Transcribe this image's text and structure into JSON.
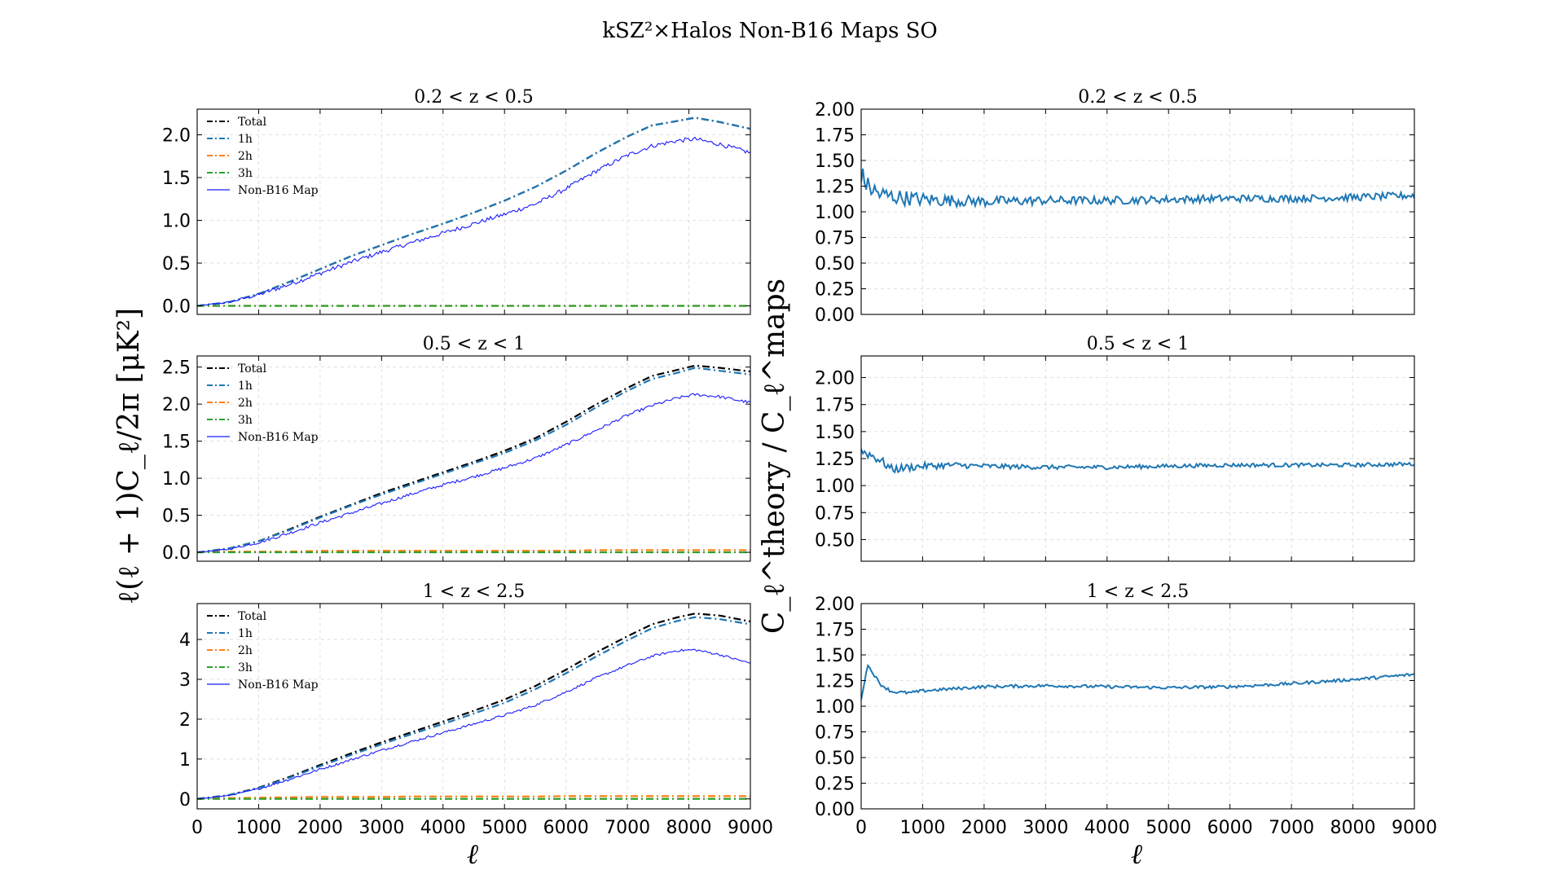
{
  "figure": {
    "title": "kSZ²×Halos Non-B16 Maps SO",
    "left_ylabel": "ℓ(ℓ + 1)C_ℓ/2π   [μK²]",
    "right_ylabel": "C_ℓ^theory / C_ℓ^maps",
    "xlabel": "ℓ"
  },
  "colors": {
    "Total": "#000000",
    "1h": "#1f77b4",
    "2h": "#ff7f0e",
    "3h": "#2ca02c",
    "Non-B16 Map": "#1a1aff",
    "ratio": "#1f77b4"
  },
  "chart_data": [
    {
      "type": "line",
      "panel": "left-1",
      "title": "0.2 < z < 0.5",
      "xlim": [
        0,
        9000
      ],
      "ylim": [
        -0.1,
        2.3
      ],
      "yticks": [
        0.0,
        0.5,
        1.0,
        1.5,
        2.0
      ],
      "ytick_labels": [
        "0.0",
        "0.5",
        "1.0",
        "1.5",
        "2.0"
      ],
      "xticks": [
        0,
        1000,
        2000,
        3000,
        4000,
        5000,
        6000,
        7000,
        8000,
        9000
      ],
      "show_xtick_labels": false,
      "grid": true,
      "legend": "top-left",
      "legend_entries": [
        "Total",
        "1h",
        "2h",
        "3h",
        "Non-B16 Map"
      ],
      "x": [
        0,
        500,
        1000,
        1500,
        2000,
        2500,
        3000,
        3500,
        4000,
        4500,
        5000,
        5500,
        6000,
        6500,
        7000,
        7400,
        7800,
        8100,
        8500,
        9000
      ],
      "series": [
        {
          "name": "Total",
          "style": "dashdot",
          "values": [
            0.0,
            0.04,
            0.14,
            0.28,
            0.43,
            0.58,
            0.71,
            0.84,
            0.96,
            1.09,
            1.23,
            1.39,
            1.58,
            1.79,
            1.98,
            2.11,
            2.16,
            2.2,
            2.15,
            2.07
          ]
        },
        {
          "name": "1h",
          "style": "dashdot",
          "values": [
            0.0,
            0.04,
            0.14,
            0.28,
            0.43,
            0.58,
            0.71,
            0.84,
            0.96,
            1.09,
            1.23,
            1.39,
            1.58,
            1.79,
            1.98,
            2.11,
            2.16,
            2.2,
            2.15,
            2.07
          ]
        },
        {
          "name": "2h",
          "style": "dashdot",
          "values": [
            0.0,
            0.0,
            0.0,
            0.0,
            0.0,
            0.0,
            0.0,
            0.0,
            0.0,
            0.0,
            0.0,
            0.0,
            0.0,
            0.0,
            0.0,
            0.0,
            0.0,
            0.0,
            0.0,
            0.0
          ]
        },
        {
          "name": "3h",
          "style": "dashdot",
          "values": [
            0.0,
            0.0,
            0.0,
            0.0,
            0.0,
            0.0,
            0.0,
            0.0,
            0.0,
            0.0,
            0.0,
            0.0,
            0.0,
            0.0,
            0.0,
            0.0,
            0.0,
            0.0,
            0.0,
            0.0
          ]
        },
        {
          "name": "Non-B16 Map",
          "style": "solid",
          "noise": 0.025,
          "values": [
            0.0,
            0.04,
            0.13,
            0.25,
            0.38,
            0.51,
            0.63,
            0.74,
            0.85,
            0.96,
            1.07,
            1.19,
            1.37,
            1.58,
            1.76,
            1.87,
            1.93,
            1.95,
            1.89,
            1.79
          ]
        }
      ]
    },
    {
      "type": "line",
      "panel": "left-2",
      "title": "0.5 < z < 1",
      "xlim": [
        0,
        9000
      ],
      "ylim": [
        -0.12,
        2.65
      ],
      "yticks": [
        0.0,
        0.5,
        1.0,
        1.5,
        2.0,
        2.5
      ],
      "ytick_labels": [
        "0.0",
        "0.5",
        "1.0",
        "1.5",
        "2.0",
        "2.5"
      ],
      "xticks": [
        0,
        1000,
        2000,
        3000,
        4000,
        5000,
        6000,
        7000,
        8000,
        9000
      ],
      "show_xtick_labels": false,
      "grid": true,
      "legend": "top-left",
      "legend_entries": [
        "Total",
        "1h",
        "2h",
        "3h",
        "Non-B16 Map"
      ],
      "x": [
        0,
        500,
        1000,
        1500,
        2000,
        2500,
        3000,
        3500,
        4000,
        4500,
        5000,
        5500,
        6000,
        6500,
        7000,
        7400,
        7800,
        8100,
        8500,
        9000
      ],
      "series": [
        {
          "name": "Total",
          "style": "dashdot",
          "values": [
            0.0,
            0.05,
            0.15,
            0.31,
            0.48,
            0.64,
            0.8,
            0.94,
            1.08,
            1.22,
            1.37,
            1.54,
            1.76,
            2.0,
            2.22,
            2.38,
            2.46,
            2.52,
            2.49,
            2.44
          ]
        },
        {
          "name": "1h",
          "style": "dashdot",
          "values": [
            0.0,
            0.05,
            0.15,
            0.3,
            0.47,
            0.63,
            0.78,
            0.92,
            1.06,
            1.2,
            1.34,
            1.51,
            1.72,
            1.96,
            2.18,
            2.34,
            2.42,
            2.49,
            2.45,
            2.4
          ]
        },
        {
          "name": "2h",
          "style": "dashdot",
          "values": [
            0.0,
            0.01,
            0.01,
            0.01,
            0.02,
            0.02,
            0.02,
            0.02,
            0.02,
            0.02,
            0.02,
            0.02,
            0.02,
            0.03,
            0.03,
            0.03,
            0.03,
            0.03,
            0.03,
            0.03
          ]
        },
        {
          "name": "3h",
          "style": "dashdot",
          "values": [
            0.0,
            0.0,
            0.0,
            0.0,
            0.0,
            0.0,
            0.0,
            0.0,
            0.0,
            0.0,
            0.0,
            0.0,
            0.0,
            0.0,
            0.0,
            0.0,
            0.0,
            0.0,
            0.0,
            0.0
          ]
        },
        {
          "name": "Non-B16 Map",
          "style": "solid",
          "noise": 0.02,
          "values": [
            0.0,
            0.04,
            0.13,
            0.26,
            0.4,
            0.53,
            0.66,
            0.79,
            0.91,
            1.02,
            1.14,
            1.27,
            1.45,
            1.65,
            1.85,
            1.98,
            2.08,
            2.13,
            2.1,
            2.02
          ]
        }
      ]
    },
    {
      "type": "line",
      "panel": "left-3",
      "title": "1 < z < 2.5",
      "xlim": [
        0,
        9000
      ],
      "ylim": [
        -0.25,
        4.9
      ],
      "yticks": [
        0,
        1,
        2,
        3,
        4
      ],
      "ytick_labels": [
        "0",
        "1",
        "2",
        "3",
        "4"
      ],
      "xticks": [
        0,
        1000,
        2000,
        3000,
        4000,
        5000,
        6000,
        7000,
        8000,
        9000
      ],
      "xtick_labels": [
        "0",
        "1000",
        "2000",
        "3000",
        "4000",
        "5000",
        "6000",
        "7000",
        "8000",
        "9000"
      ],
      "show_xtick_labels": true,
      "grid": true,
      "legend": "top-left",
      "legend_entries": [
        "Total",
        "1h",
        "2h",
        "3h",
        "Non-B16 Map"
      ],
      "x": [
        0,
        500,
        1000,
        1500,
        2000,
        2500,
        3000,
        3500,
        4000,
        4500,
        5000,
        5500,
        6000,
        6500,
        7000,
        7400,
        7800,
        8100,
        8500,
        9000
      ],
      "series": [
        {
          "name": "Total",
          "style": "dashdot",
          "values": [
            0.0,
            0.09,
            0.28,
            0.55,
            0.85,
            1.14,
            1.42,
            1.68,
            1.94,
            2.21,
            2.49,
            2.83,
            3.24,
            3.68,
            4.08,
            4.38,
            4.55,
            4.65,
            4.6,
            4.45
          ]
        },
        {
          "name": "1h",
          "style": "dashdot",
          "values": [
            0.0,
            0.09,
            0.27,
            0.53,
            0.82,
            1.1,
            1.37,
            1.63,
            1.88,
            2.14,
            2.41,
            2.75,
            3.15,
            3.58,
            3.98,
            4.28,
            4.46,
            4.56,
            4.51,
            4.38
          ]
        },
        {
          "name": "2h",
          "style": "dashdot",
          "values": [
            0.0,
            0.02,
            0.03,
            0.04,
            0.05,
            0.05,
            0.05,
            0.06,
            0.06,
            0.06,
            0.06,
            0.06,
            0.07,
            0.07,
            0.07,
            0.07,
            0.07,
            0.07,
            0.07,
            0.07
          ]
        },
        {
          "name": "3h",
          "style": "dashdot",
          "values": [
            0.0,
            0.0,
            0.0,
            0.0,
            0.0,
            0.0,
            0.0,
            0.0,
            0.0,
            0.0,
            0.0,
            0.0,
            0.0,
            0.0,
            0.0,
            0.0,
            0.0,
            0.0,
            0.0,
            0.0
          ]
        },
        {
          "name": "Non-B16 Map",
          "style": "solid",
          "noise": 0.03,
          "values": [
            0.0,
            0.08,
            0.25,
            0.49,
            0.74,
            0.98,
            1.22,
            1.44,
            1.66,
            1.88,
            2.1,
            2.35,
            2.68,
            3.04,
            3.35,
            3.58,
            3.72,
            3.74,
            3.62,
            3.4
          ]
        }
      ]
    },
    {
      "type": "line",
      "panel": "right-1",
      "title": "0.2 < z < 0.5",
      "xlim": [
        0,
        9000
      ],
      "ylim": [
        0.0,
        2.0
      ],
      "yticks": [
        0.0,
        0.25,
        0.5,
        0.75,
        1.0,
        1.25,
        1.5,
        1.75,
        2.0
      ],
      "ytick_labels": [
        "0.00",
        "0.25",
        "0.50",
        "0.75",
        "1.00",
        "1.25",
        "1.50",
        "1.75",
        "2.00"
      ],
      "xticks": [
        0,
        1000,
        2000,
        3000,
        4000,
        5000,
        6000,
        7000,
        8000,
        9000
      ],
      "show_xtick_labels": false,
      "grid": true,
      "x": [
        0,
        100,
        300,
        500,
        800,
        1000,
        1500,
        2000,
        3000,
        4000,
        5000,
        6000,
        7000,
        8000,
        9000
      ],
      "series": [
        {
          "style": "solid",
          "noise": 0.035,
          "noise_decay": 1500,
          "values": [
            1.37,
            1.25,
            1.17,
            1.15,
            1.13,
            1.12,
            1.11,
            1.1,
            1.11,
            1.11,
            1.12,
            1.13,
            1.13,
            1.14,
            1.16
          ]
        }
      ]
    },
    {
      "type": "line",
      "panel": "right-2",
      "title": "0.5 < z < 1",
      "xlim": [
        0,
        9000
      ],
      "ylim": [
        0.3,
        2.2
      ],
      "yticks": [
        0.5,
        0.75,
        1.0,
        1.25,
        1.5,
        1.75,
        2.0
      ],
      "ytick_labels": [
        "0.50",
        "0.75",
        "1.00",
        "1.25",
        "1.50",
        "1.75",
        "2.00"
      ],
      "xticks": [
        0,
        1000,
        2000,
        3000,
        4000,
        5000,
        6000,
        7000,
        8000,
        9000
      ],
      "show_xtick_labels": false,
      "grid": true,
      "x": [
        0,
        100,
        300,
        500,
        800,
        1000,
        1500,
        2000,
        3000,
        4000,
        5000,
        6000,
        7000,
        8000,
        9000
      ],
      "series": [
        {
          "style": "solid",
          "noise": 0.018,
          "noise_decay": 1200,
          "values": [
            1.32,
            1.3,
            1.24,
            1.15,
            1.17,
            1.18,
            1.19,
            1.18,
            1.17,
            1.17,
            1.18,
            1.19,
            1.19,
            1.19,
            1.2
          ]
        }
      ]
    },
    {
      "type": "line",
      "panel": "right-3",
      "title": "1 < z < 2.5",
      "xlim": [
        0,
        9000
      ],
      "ylim": [
        0.0,
        2.0
      ],
      "yticks": [
        0.0,
        0.25,
        0.5,
        0.75,
        1.0,
        1.25,
        1.5,
        1.75,
        2.0
      ],
      "ytick_labels": [
        "0.00",
        "0.25",
        "0.50",
        "0.75",
        "1.00",
        "1.25",
        "1.50",
        "1.75",
        "2.00"
      ],
      "xticks": [
        0,
        1000,
        2000,
        3000,
        4000,
        5000,
        6000,
        7000,
        8000,
        9000
      ],
      "xtick_labels": [
        "0",
        "1000",
        "2000",
        "3000",
        "4000",
        "5000",
        "6000",
        "7000",
        "8000",
        "9000"
      ],
      "show_xtick_labels": true,
      "grid": true,
      "x": [
        0,
        40,
        100,
        200,
        300,
        500,
        800,
        1000,
        1500,
        2000,
        3000,
        4000,
        5000,
        6000,
        7000,
        8000,
        9000
      ],
      "series": [
        {
          "style": "solid",
          "noise": 0.015,
          "noise_decay": 0,
          "values": [
            1.05,
            1.2,
            1.4,
            1.32,
            1.22,
            1.14,
            1.13,
            1.15,
            1.17,
            1.19,
            1.2,
            1.19,
            1.18,
            1.19,
            1.22,
            1.26,
            1.31
          ]
        }
      ]
    }
  ]
}
